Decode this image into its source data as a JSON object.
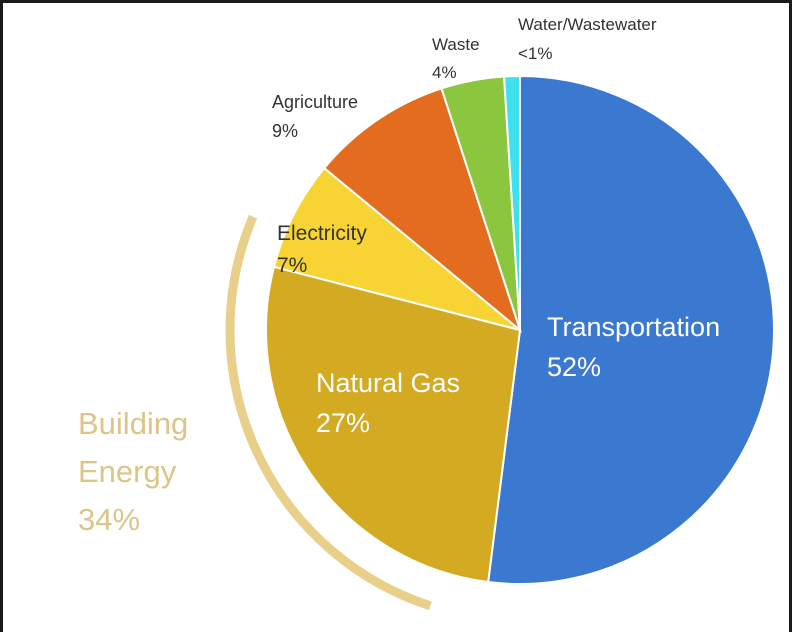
{
  "chart_data": {
    "type": "pie",
    "slices": [
      {
        "label": "Transportation",
        "value_label": "52%",
        "value": 52,
        "color": "#3b78cf"
      },
      {
        "label": "Natural Gas",
        "value_label": "27%",
        "value": 27,
        "color": "#d4aa22"
      },
      {
        "label": "Electricity",
        "value_label": "7%",
        "value": 7,
        "color": "#f7d433"
      },
      {
        "label": "Agriculture",
        "value_label": "9%",
        "value": 9,
        "color": "#e36c1e"
      },
      {
        "label": "Waste",
        "value_label": "4%",
        "value": 4,
        "color": "#8cc63f"
      },
      {
        "label": "Water/Wastewater",
        "value_label": "<1%",
        "value": 1,
        "color": "#3ee0f0"
      }
    ],
    "group": {
      "line1": "Building",
      "line2": "Energy",
      "value_label": "34%",
      "members": [
        "Natural Gas",
        "Electricity"
      ],
      "color": "#e8d08a"
    }
  }
}
